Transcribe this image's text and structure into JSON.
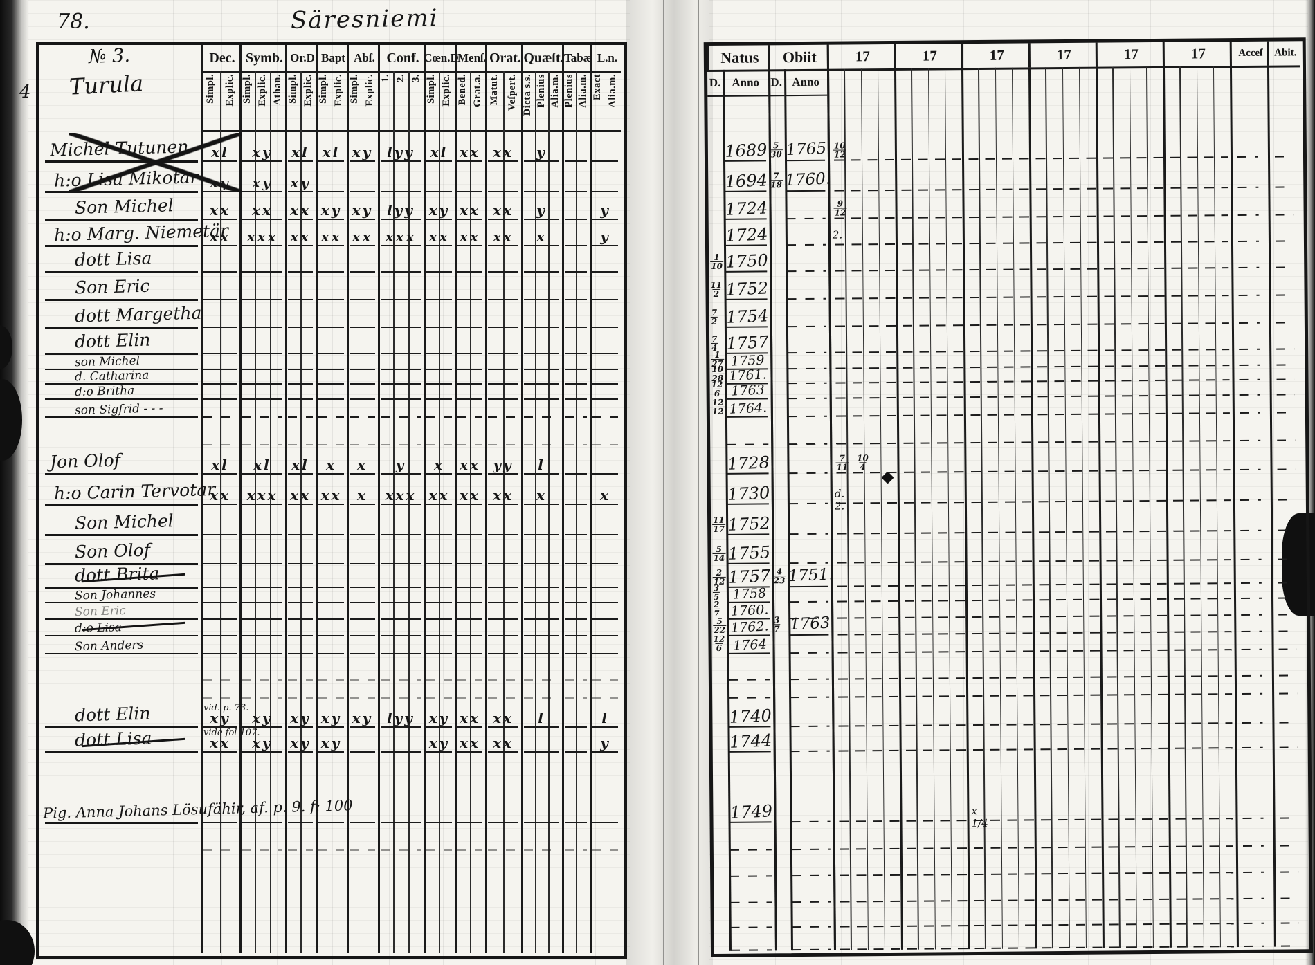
{
  "page": {
    "folio": "78.",
    "title": "Säresniemi",
    "margin_number": "4",
    "ink_color": "#1a1a1a",
    "paper_color": "#f5f4ef"
  },
  "left_table": {
    "household_no": "№ 3.",
    "village": "Turula",
    "columns": [
      {
        "label": "Dec.",
        "subs": [
          "Simpl.",
          "Explic."
        ]
      },
      {
        "label": "Symb.",
        "subs": [
          "Simpl.",
          "Explic.",
          "Athan."
        ]
      },
      {
        "label": "Or.D",
        "subs": [
          "Simpl.",
          "Explic."
        ]
      },
      {
        "label": "Bapt",
        "subs": [
          "Simpl.",
          "Explic."
        ]
      },
      {
        "label": "Abſ.",
        "subs": [
          "Simpl.",
          "Explic."
        ]
      },
      {
        "label": "Conf.",
        "subs": [
          "1.",
          "2.",
          "3."
        ]
      },
      {
        "label": "Cœn.D",
        "subs": [
          "Simpl.",
          "Explic."
        ]
      },
      {
        "label": "Menſ.",
        "subs": [
          "Bened.",
          "Grat.a."
        ]
      },
      {
        "label": "Orat.",
        "subs": [
          "Matut.",
          "Veſpert."
        ]
      },
      {
        "label": "Quæſt.",
        "subs": [
          "Dicta s.s.",
          "Plenius",
          "Alia.m."
        ]
      },
      {
        "label": "Tabæ",
        "subs": [
          "Plenius",
          "Alia.m."
        ]
      },
      {
        "label": "L.n.",
        "subs": [
          "Exact",
          "Alia.m."
        ]
      }
    ]
  },
  "right_table": {
    "natus_label": "Natus",
    "obiit_label": "Obiit",
    "day_label": "D.",
    "anno_label": "Anno",
    "century_label": "17",
    "acces_label": "Acceſ",
    "abit_label": "Abit."
  },
  "rows": [
    {
      "name": "Michel Tutunen",
      "struck": "bigx",
      "marks": [
        "xl",
        "xy",
        "xl",
        "xl",
        "xy",
        "lyy",
        "xl",
        "xx",
        "xx",
        "y",
        "",
        ""
      ],
      "natus": "1689",
      "obiit_d": "5/30",
      "obiit": "1765",
      "ann": [
        {
          "c": 0,
          "t": "10/12",
          "f": 1
        }
      ]
    },
    {
      "name": "h:o Lisa Mikotar",
      "struck": "bigx",
      "marks": [
        "xy",
        "xy",
        "xy",
        "",
        "",
        "",
        "",
        "",
        "",
        "",
        "",
        ""
      ],
      "natus": "1694",
      "obiit_d": "7/18",
      "obiit": "1760."
    },
    {
      "name": "Son Michel",
      "marks": [
        "xx",
        "xx",
        "xx",
        "xy",
        "xy",
        "lyy",
        "xy",
        "xx",
        "xx",
        "y",
        "",
        "y"
      ],
      "natus": "1724",
      "ann": [
        {
          "c": 0,
          "t": "9/12",
          "f": 1
        }
      ]
    },
    {
      "name": "h:o Marg. Niemetär",
      "marks": [
        "xx",
        "xxx",
        "xx",
        "xx",
        "xx",
        "xxx",
        "xx",
        "xx",
        "xx",
        "x",
        "",
        "y"
      ],
      "natus": "1724",
      "ann": [
        {
          "c": 0,
          "t": "2.",
          "f": 0
        }
      ]
    },
    {
      "name": "dott Lisa",
      "natus_d": "1/10",
      "natus": "1750"
    },
    {
      "name": "Son Eric",
      "natus_d": "11/2",
      "natus": "1752"
    },
    {
      "name": "dott Margetha",
      "natus_d": "7/2",
      "natus": "1754"
    },
    {
      "name": "dott Elin",
      "natus_d": "7/4",
      "natus": "1757"
    },
    {
      "name": "son Michel",
      "natus_d": "1/27",
      "natus": "1759"
    },
    {
      "name": "d. Catharina",
      "natus_d": "10/28",
      "natus": "1761."
    },
    {
      "name": "d:o Britha",
      "natus_d": "12/6",
      "natus": "1763"
    },
    {
      "name": "son Sigfrid - - -",
      "natus_d": "12/12",
      "natus": "1764."
    },
    {
      "name": "Jon Olof",
      "marks": [
        "xl",
        "xl",
        "xl",
        "x",
        "x",
        "y",
        "x",
        "xx",
        "yy",
        "l",
        "",
        ""
      ],
      "natus": "1728",
      "ann": [
        {
          "c": 0,
          "t": "7/11 10/4",
          "f": 1
        }
      ]
    },
    {
      "name": "h:o Carin Tervotar",
      "marks": [
        "xx",
        "xxx",
        "xx",
        "xx",
        "x",
        "xxx",
        "xx",
        "xx",
        "xx",
        "x",
        "",
        "x"
      ],
      "natus": "1730",
      "ann": [
        {
          "c": 0,
          "t": "d. 2.",
          "f": 0
        }
      ]
    },
    {
      "name": "Son Michel",
      "natus_d": "11/17",
      "natus": "1752"
    },
    {
      "name": "Son Olof",
      "natus_d": "5/14",
      "natus": "1755"
    },
    {
      "name": "dott Brita",
      "struck": "line",
      "natus_d": "2/12",
      "natus": "1757",
      "obiit_d": "4/23",
      "obiit": "1751."
    },
    {
      "name": "Son Johannes",
      "natus_d": "3/5",
      "natus": "1758"
    },
    {
      "name": "Son Eric",
      "faint": true,
      "natus_d": "2/7",
      "natus": "1760."
    },
    {
      "name": "d:o Lisa",
      "struck": "line",
      "natus_d": "5/22",
      "natus": "1762.",
      "obiit_d": "3/7",
      "obiit": "1763"
    },
    {
      "name": "Son Anders",
      "natus_d": "12/6",
      "natus": "1764"
    },
    {
      "name": "dott Elin",
      "note": "vid. p. 73.",
      "marks": [
        "xy",
        "xy",
        "xy",
        "xy",
        "xy",
        "lyy",
        "xy",
        "xx",
        "xx",
        "l",
        "",
        "l"
      ],
      "natus": "1740"
    },
    {
      "name": "dott Lisa",
      "struck": "line",
      "note": "vide fol 107.",
      "marks": [
        "xx",
        "xy",
        "xy",
        "xy",
        "",
        "",
        "xy",
        "xx",
        "xx",
        "",
        "",
        "y"
      ],
      "natus": "1744"
    },
    {
      "name": "Pig. Anna Johans Lösufähir, af. p. 9.  f: 100",
      "wide": true,
      "natus": "1749",
      "ann": [
        {
          "c": 2,
          "t": "x 1/4",
          "f": 0
        }
      ]
    }
  ]
}
